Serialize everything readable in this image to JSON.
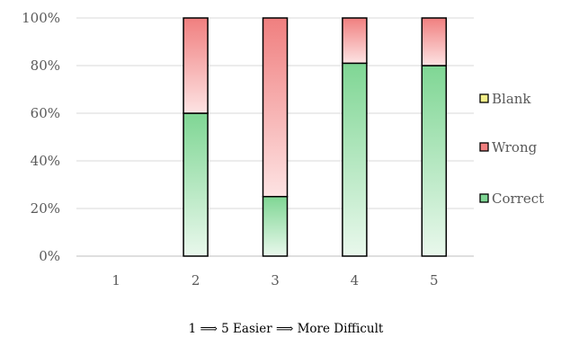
{
  "chart_data": {
    "type": "bar",
    "stacked": true,
    "normalized": true,
    "categories": [
      "1",
      "2",
      "3",
      "4",
      "5"
    ],
    "series": [
      {
        "name": "Correct",
        "values": [
          0,
          60,
          25,
          81,
          80
        ]
      },
      {
        "name": "Wrong",
        "values": [
          0,
          40,
          75,
          19,
          20
        ]
      },
      {
        "name": "Blank",
        "values": [
          0,
          0,
          0,
          0,
          0
        ]
      }
    ],
    "legend_order": [
      "Blank",
      "Wrong",
      "Correct"
    ],
    "legend_position": "right",
    "yticks": [
      "0%",
      "20%",
      "40%",
      "60%",
      "80%",
      "100%"
    ],
    "ylim": [
      0,
      100
    ],
    "grid": true,
    "xlabel": "1 ⟹ 5      Easier ⟹ More Difficult"
  },
  "colors": {
    "Correct": {
      "top": "#7fd694",
      "bottom": "#e9f8ec"
    },
    "Wrong": {
      "top": "#f07f7f",
      "bottom": "#fde3e3"
    },
    "Blank": {
      "top": "#f3ef8a",
      "bottom": "#fffbe0"
    },
    "gridline": "#d9d9d9",
    "axis": "#bfbfbf",
    "bar_outline": "#000000"
  }
}
